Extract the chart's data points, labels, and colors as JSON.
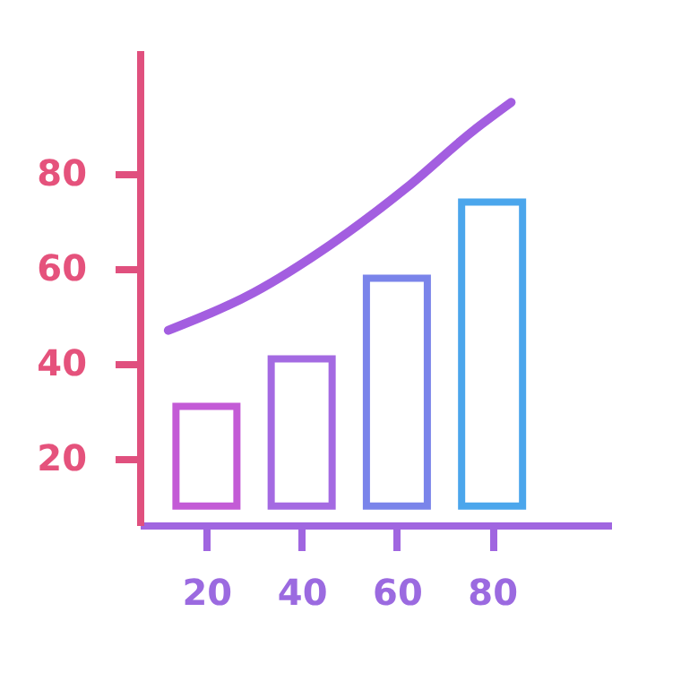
{
  "chart_data": {
    "type": "bar",
    "x": [
      20,
      40,
      60,
      80
    ],
    "base": [
      10,
      10,
      10,
      10
    ],
    "values": [
      21,
      31,
      48,
      64
    ],
    "colors": [
      "#c35bd6",
      "#a46ae2",
      "#7a84ea",
      "#4ba6ec"
    ],
    "series": [
      {
        "type": "line",
        "color": "#a35ee0",
        "x": [
          12,
          30,
          46,
          62,
          76,
          84
        ],
        "values": [
          47,
          55,
          65,
          77,
          89,
          95
        ]
      }
    ],
    "xlim": [
      6,
      105
    ],
    "ylim": [
      6,
      106
    ],
    "xticks": [
      20,
      40,
      60,
      80
    ],
    "yticks": [
      20,
      40,
      60,
      80
    ],
    "grid": false,
    "marker": "none",
    "line_style": "solid"
  }
}
